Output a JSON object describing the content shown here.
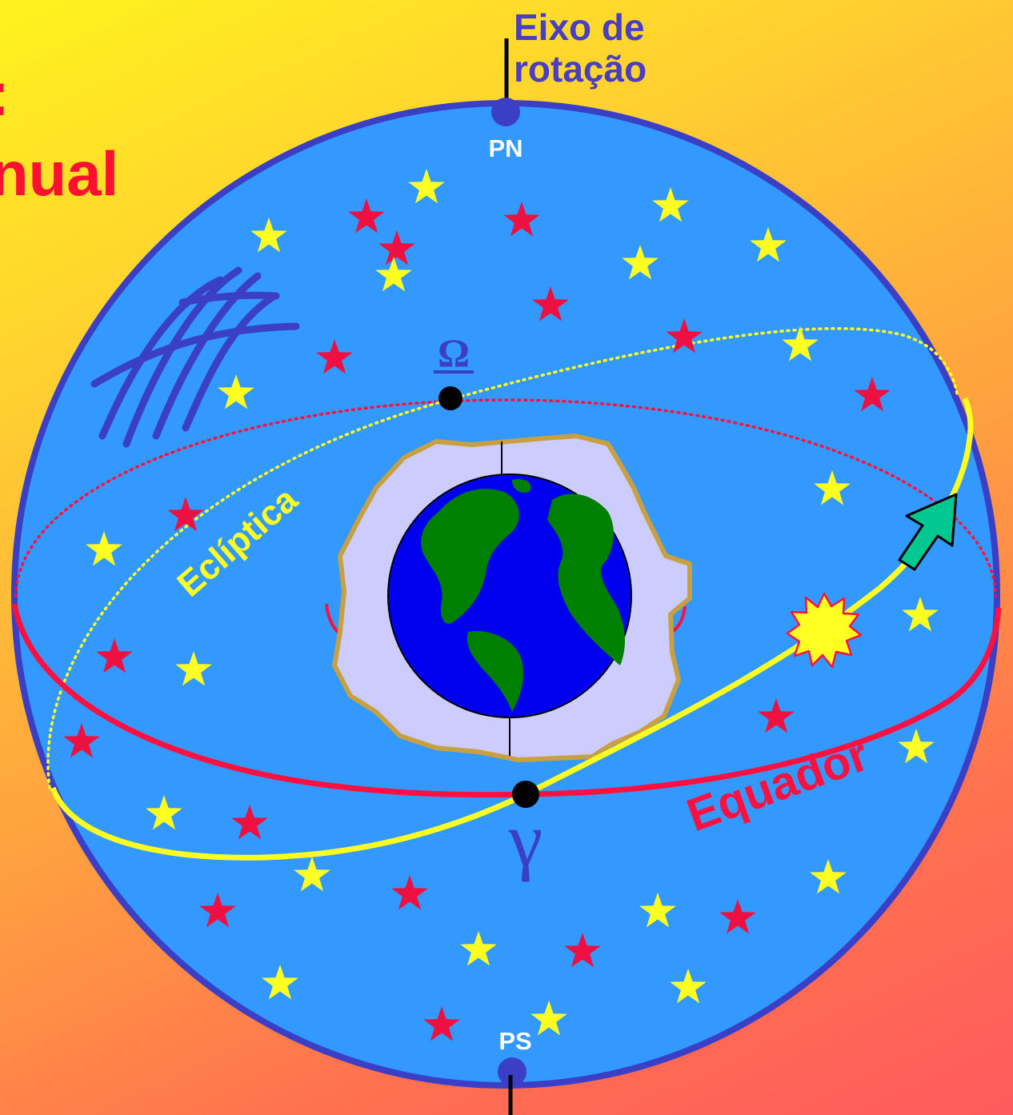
{
  "title": {
    "line1": ":",
    "line2": "nual"
  },
  "axis_label": {
    "line1": "Eixo de",
    "line2": "rotação"
  },
  "labels": {
    "north_pole": "PN",
    "south_pole": "PS",
    "ecliptic": "Eclíptica",
    "equator": "Equador",
    "ascending_node": "Ω",
    "vernal_point": "γ"
  },
  "colors": {
    "sphere": "#3399ff",
    "sphere_outline": "#3a3fc6",
    "equator": "#ff1040",
    "ecliptic": "#ffff22",
    "star_yellow": "#ffff22",
    "star_red": "#ee1040",
    "earth_ocean": "#0000ee",
    "earth_land": "#008000",
    "halo": "#ccccff",
    "halo_border": "#c8a040",
    "arrow": "#00c890",
    "sun": "#ffff22"
  },
  "icons": [
    "sun-icon",
    "earth-icon",
    "direction-arrow-icon",
    "star-icon",
    "grid-lines-icon"
  ]
}
